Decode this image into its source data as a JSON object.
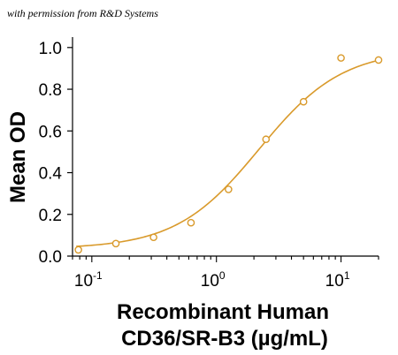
{
  "credit": "with permission from R&D Systems",
  "colors": {
    "series": "#D99A2B",
    "axis": "#000000"
  },
  "chart_data": {
    "type": "scatter",
    "title": "",
    "xlabel_line1": "Recombinant Human",
    "xlabel_line2": "CD36/SR-B3 (µg/mL)",
    "ylabel": "Mean OD",
    "xscale": "log",
    "xlim": [
      0.07,
      20
    ],
    "ylim": [
      0,
      1.05
    ],
    "x_ticks": [
      {
        "value": 0.1,
        "base": "10",
        "exp": "-1"
      },
      {
        "value": 1,
        "base": "10",
        "exp": "0"
      },
      {
        "value": 10,
        "base": "10",
        "exp": "1"
      }
    ],
    "y_ticks": [
      {
        "value": 0.0,
        "label": "0.0"
      },
      {
        "value": 0.2,
        "label": "0.2"
      },
      {
        "value": 0.4,
        "label": "0.4"
      },
      {
        "value": 0.6,
        "label": "0.6"
      },
      {
        "value": 0.8,
        "label": "0.8"
      },
      {
        "value": 1.0,
        "label": "1.0"
      }
    ],
    "grid": false,
    "legend": "none",
    "series": [
      {
        "x": [
          0.078,
          0.156,
          0.313,
          0.625,
          1.25,
          2.5,
          5,
          10,
          20
        ],
        "y": [
          0.03,
          0.06,
          0.09,
          0.16,
          0.32,
          0.56,
          0.74,
          0.95,
          0.94
        ]
      }
    ],
    "fit": {
      "model": "4PL",
      "bottom": 0.035,
      "top": 0.99,
      "ec50": 2.2,
      "hill": 1.3
    }
  }
}
